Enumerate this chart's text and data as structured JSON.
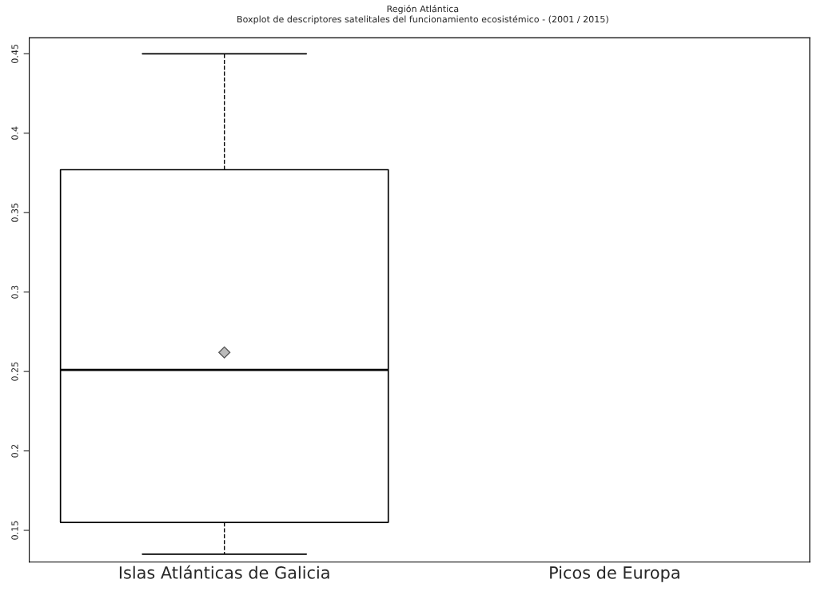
{
  "chart_data": {
    "type": "box",
    "title": "Región Atlántica",
    "subtitle": "Boxplot de descriptores satelitales del funcionamiento ecosistémico - (2001 / 2015)",
    "categories": [
      "Islas Atlánticas de Galicia",
      "Picos de Europa"
    ],
    "boxes": [
      {
        "low": 0.135,
        "q1": 0.155,
        "median": 0.251,
        "q3": 0.377,
        "high": 0.45,
        "mean": 0.262
      },
      null
    ],
    "ylim": [
      0.13,
      0.46
    ],
    "yticks": [
      0.15,
      0.2,
      0.25,
      0.3,
      0.35,
      0.4,
      0.45
    ],
    "grid": false,
    "marker": "diamond"
  }
}
